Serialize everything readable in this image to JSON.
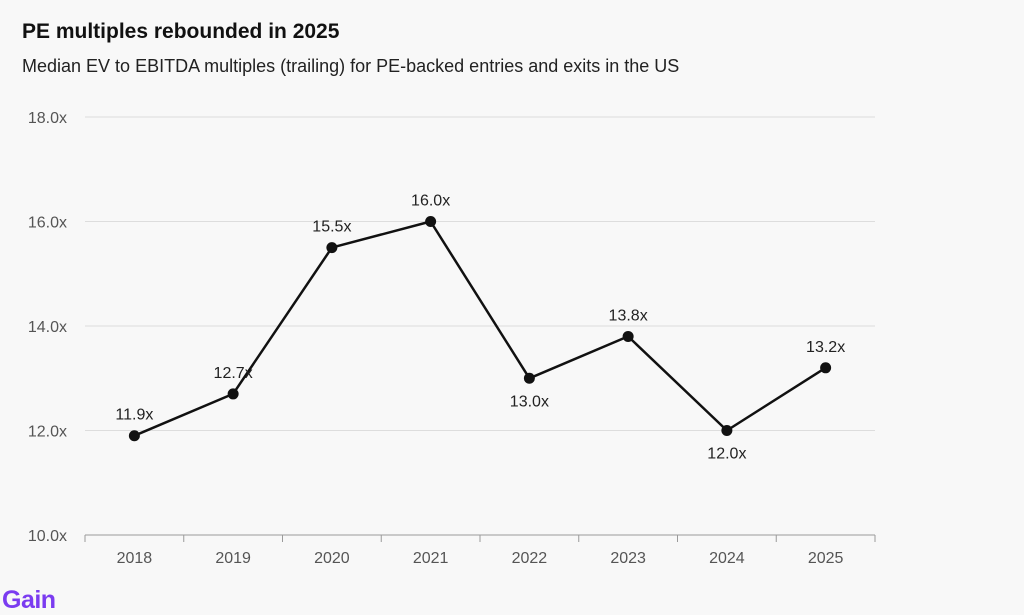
{
  "title": "PE multiples rebounded in 2025",
  "subtitle": "Median EV to EBITDA multiples (trailing) for PE-backed entries and exits in the US",
  "brand": {
    "logo_text": "Gain",
    "color": "#7b3cf0"
  },
  "colors": {
    "line": "#111111",
    "grid": "#dddddd",
    "axis": "#9a9a9a",
    "tick_text": "#555555",
    "label_text": "#222222"
  },
  "chart_data": {
    "type": "line",
    "title": "PE multiples rebounded in 2025",
    "subtitle": "Median EV to EBITDA multiples (trailing) for PE-backed entries and exits in the US",
    "xlabel": "",
    "ylabel": "",
    "categories": [
      "2018",
      "2019",
      "2020",
      "2021",
      "2022",
      "2023",
      "2024",
      "2025"
    ],
    "values": [
      11.9,
      12.7,
      15.5,
      16.0,
      13.0,
      13.8,
      12.0,
      13.2
    ],
    "data_labels": [
      "11.9x",
      "12.7x",
      "15.5x",
      "16.0x",
      "13.0x",
      "13.8x",
      "12.0x",
      "13.2x"
    ],
    "label_position": [
      "above",
      "above",
      "above",
      "above",
      "below",
      "above",
      "below",
      "above"
    ],
    "yticks": [
      10,
      12,
      14,
      16,
      18
    ],
    "ytick_labels": [
      "10.0x",
      "12.0x",
      "14.0x",
      "16.0x",
      "18.0x"
    ],
    "ylim": [
      10,
      18
    ],
    "grid": true,
    "legend": "none"
  }
}
